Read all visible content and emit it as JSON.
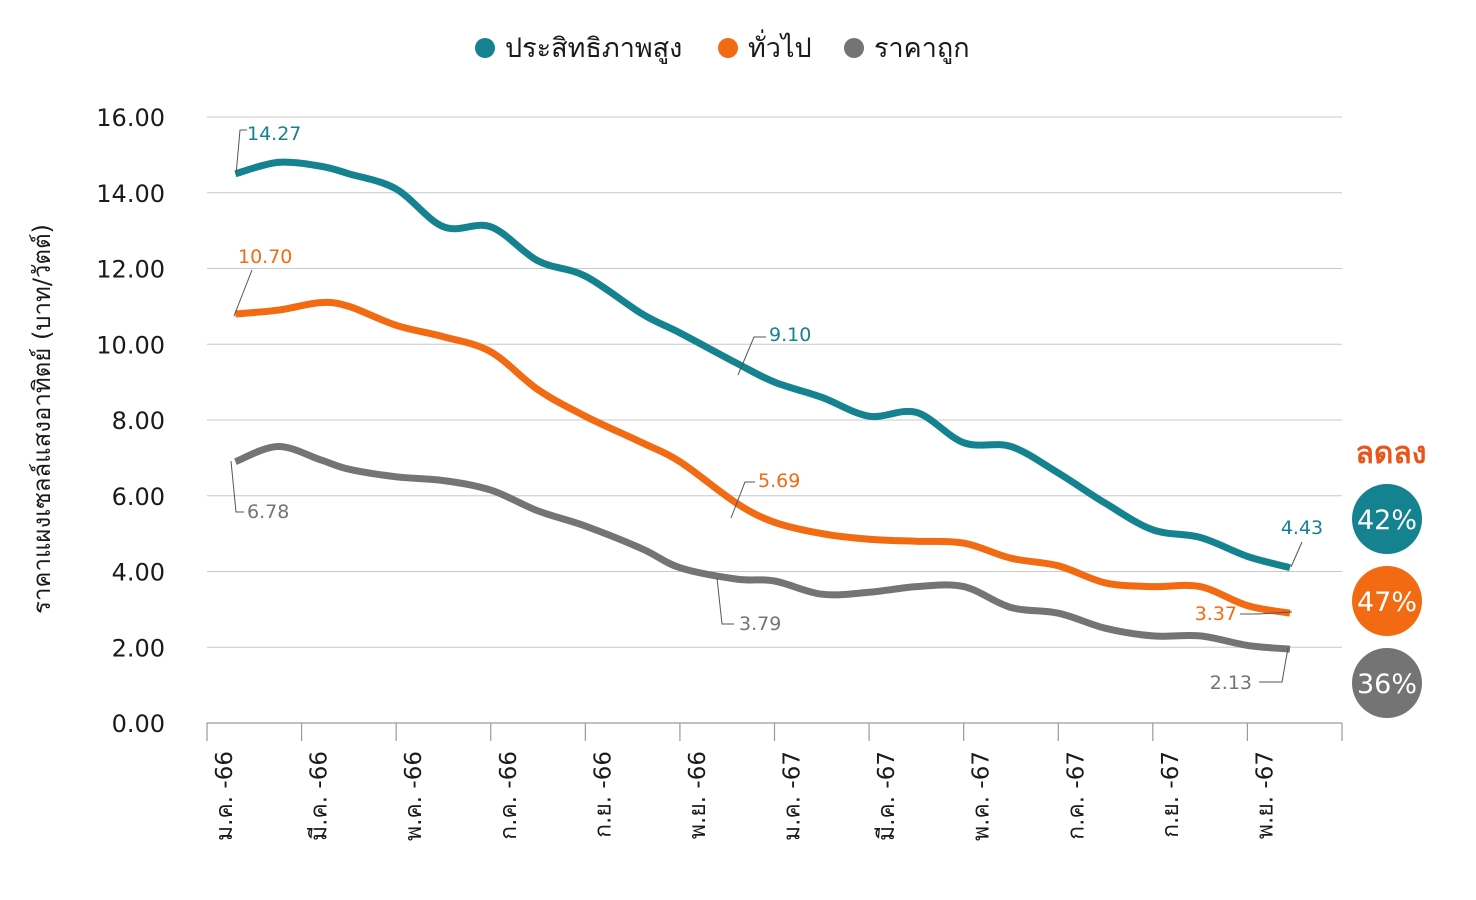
{
  "chart_data": {
    "type": "line",
    "title": "",
    "ylabel": "ราคาแผงเซลล์แสงอาทิตย์ (บาท/วัตต์)",
    "xlabel": "",
    "ylim": [
      0,
      16
    ],
    "yticks": [
      "0.00",
      "2.00",
      "4.00",
      "6.00",
      "8.00",
      "10.00",
      "12.00",
      "14.00",
      "16.00"
    ],
    "grid": true,
    "legend_position": "top-center",
    "categories": [
      "ม.ค. -66",
      "มี.ค. -66",
      "พ.ค. -66",
      "ก.ค. -66",
      "ก.ย. -66",
      "พ.ย. -66",
      "ม.ค. -67",
      "มี.ค. -67",
      "พ.ค. -67",
      "ก.ค. -67",
      "ก.ย. -67",
      "พ.ย. -67"
    ],
    "x": [
      0.3,
      0.75,
      1.2,
      1.5,
      2.0,
      2.5,
      3.0,
      3.5,
      4.0,
      4.6,
      5.0,
      5.6,
      6.0,
      6.5,
      7.0,
      7.5,
      8.0,
      8.5,
      9.0,
      9.5,
      10.0,
      10.5,
      11.0,
      11.45
    ],
    "series": [
      {
        "name": "ประสิทธิภาพสูง",
        "color": "#14838F",
        "values": [
          14.5,
          14.8,
          14.7,
          14.5,
          14.1,
          13.1,
          13.1,
          12.2,
          11.8,
          10.8,
          10.3,
          9.5,
          9.0,
          8.6,
          8.1,
          8.2,
          7.4,
          7.3,
          6.6,
          5.8,
          5.1,
          4.9,
          4.4,
          4.1
        ]
      },
      {
        "name": "ทั่วไป",
        "color": "#F26A12",
        "values": [
          10.8,
          10.9,
          11.1,
          11.0,
          10.5,
          10.2,
          9.8,
          8.8,
          8.1,
          7.4,
          6.9,
          5.8,
          5.3,
          5.0,
          4.85,
          4.8,
          4.75,
          4.35,
          4.15,
          3.7,
          3.6,
          3.6,
          3.1,
          2.9
        ]
      },
      {
        "name": "ราคาถูก",
        "color": "#747474",
        "values": [
          6.9,
          7.3,
          6.95,
          6.7,
          6.5,
          6.4,
          6.15,
          5.6,
          5.2,
          4.6,
          4.1,
          3.8,
          3.75,
          3.4,
          3.45,
          3.6,
          3.6,
          3.05,
          2.9,
          2.5,
          2.3,
          2.3,
          2.05,
          1.95
        ]
      }
    ],
    "annotations": [
      {
        "series": 0,
        "label": "14.27"
      },
      {
        "series": 1,
        "label": "10.70"
      },
      {
        "series": 2,
        "label": "6.78"
      },
      {
        "series": 0,
        "label": "9.10"
      },
      {
        "series": 1,
        "label": "5.69"
      },
      {
        "series": 2,
        "label": "3.79"
      },
      {
        "series": 0,
        "label": "4.43"
      },
      {
        "series": 1,
        "label": "3.37"
      },
      {
        "series": 2,
        "label": "2.13"
      }
    ],
    "decrease": {
      "title": "ลดลง",
      "title_color": "#E8541A",
      "items": [
        {
          "label": "42%",
          "color": "#14838F"
        },
        {
          "label": "47%",
          "color": "#F26A12"
        },
        {
          "label": "36%",
          "color": "#747474"
        }
      ]
    }
  }
}
